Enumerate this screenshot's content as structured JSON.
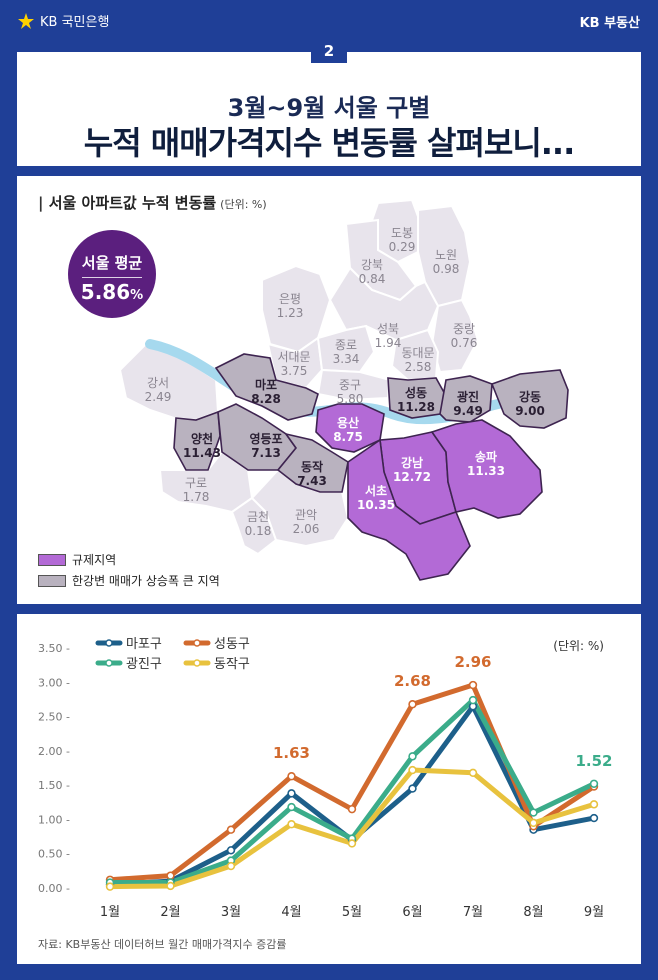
{
  "header": {
    "left_brand": "KB 국민은행",
    "right_brand": "KB 부동산",
    "badge": "2"
  },
  "title": {
    "line1": "3월~9월 서울 구별",
    "line2": "누적 매매가격지수 변동률 살펴보니..."
  },
  "map": {
    "title": "서울 아파트값 누적 변동률",
    "unit": "(단위: %)",
    "average_label": "서울 평균",
    "average_value": "5.86",
    "average_unit": "%",
    "legend": [
      {
        "label": "규제지역",
        "color": "#b36ad6"
      },
      {
        "label": "한강변 매매가 상승폭 큰 지역",
        "color": "#b9b2bf"
      }
    ],
    "districts": [
      {
        "name": "도봉",
        "value": "0.29",
        "cat": "none"
      },
      {
        "name": "노원",
        "value": "0.98",
        "cat": "none"
      },
      {
        "name": "강북",
        "value": "0.84",
        "cat": "none"
      },
      {
        "name": "은평",
        "value": "1.23",
        "cat": "none"
      },
      {
        "name": "성북",
        "value": "1.94",
        "cat": "none"
      },
      {
        "name": "중랑",
        "value": "0.76",
        "cat": "none"
      },
      {
        "name": "서대문",
        "value": "3.75",
        "cat": "none"
      },
      {
        "name": "종로",
        "value": "3.34",
        "cat": "none"
      },
      {
        "name": "동대문",
        "value": "2.58",
        "cat": "none"
      },
      {
        "name": "중구",
        "value": "5.80",
        "cat": "none"
      },
      {
        "name": "마포",
        "value": "8.28",
        "cat": "river"
      },
      {
        "name": "성동",
        "value": "11.28",
        "cat": "river"
      },
      {
        "name": "광진",
        "value": "9.49",
        "cat": "river"
      },
      {
        "name": "강동",
        "value": "9.00",
        "cat": "river"
      },
      {
        "name": "강서",
        "value": "2.49",
        "cat": "none"
      },
      {
        "name": "용산",
        "value": "8.75",
        "cat": "reg"
      },
      {
        "name": "양천",
        "value": "11.43",
        "cat": "river"
      },
      {
        "name": "영등포",
        "value": "7.13",
        "cat": "river"
      },
      {
        "name": "동작",
        "value": "7.43",
        "cat": "river"
      },
      {
        "name": "강남",
        "value": "12.72",
        "cat": "reg"
      },
      {
        "name": "송파",
        "value": "11.33",
        "cat": "reg"
      },
      {
        "name": "서초",
        "value": "10.35",
        "cat": "reg"
      },
      {
        "name": "구로",
        "value": "1.78",
        "cat": "none"
      },
      {
        "name": "금천",
        "value": "0.18",
        "cat": "none"
      },
      {
        "name": "관악",
        "value": "2.06",
        "cat": "none"
      }
    ]
  },
  "chart_data": {
    "type": "line",
    "categories": [
      "1월",
      "2월",
      "3월",
      "4월",
      "5월",
      "6월",
      "7월",
      "8월",
      "9월"
    ],
    "series": [
      {
        "name": "마포구",
        "color": "#1d5f8a",
        "values": [
          0.05,
          0.1,
          0.55,
          1.38,
          0.7,
          1.45,
          2.65,
          0.85,
          1.02
        ]
      },
      {
        "name": "성동구",
        "color": "#d26a2e",
        "values": [
          0.12,
          0.18,
          0.85,
          1.63,
          1.15,
          2.68,
          2.96,
          0.9,
          1.48
        ]
      },
      {
        "name": "광진구",
        "color": "#3bac8a",
        "values": [
          0.08,
          0.08,
          0.4,
          1.18,
          0.72,
          1.92,
          2.74,
          1.1,
          1.52
        ]
      },
      {
        "name": "동작구",
        "color": "#e8c23e",
        "values": [
          0.02,
          0.03,
          0.32,
          0.93,
          0.65,
          1.72,
          1.68,
          0.95,
          1.22
        ]
      }
    ],
    "ylim": [
      0,
      3.5
    ],
    "yticks": [
      "0.00",
      "0.50",
      "1.00",
      "1.50",
      "2.00",
      "2.50",
      "3.00",
      "3.50"
    ],
    "annotations": [
      {
        "series": 1,
        "index": 3,
        "label": "1.63"
      },
      {
        "series": 1,
        "index": 5,
        "label": "2.68"
      },
      {
        "series": 1,
        "index": 6,
        "label": "2.96"
      },
      {
        "series": 2,
        "index": 8,
        "label": "1.52"
      }
    ],
    "unit": "(단위: %)",
    "legend_position": "top-left"
  },
  "source": "자료: KB부동산 데이터허브 월간 매매가격지수 증감률"
}
